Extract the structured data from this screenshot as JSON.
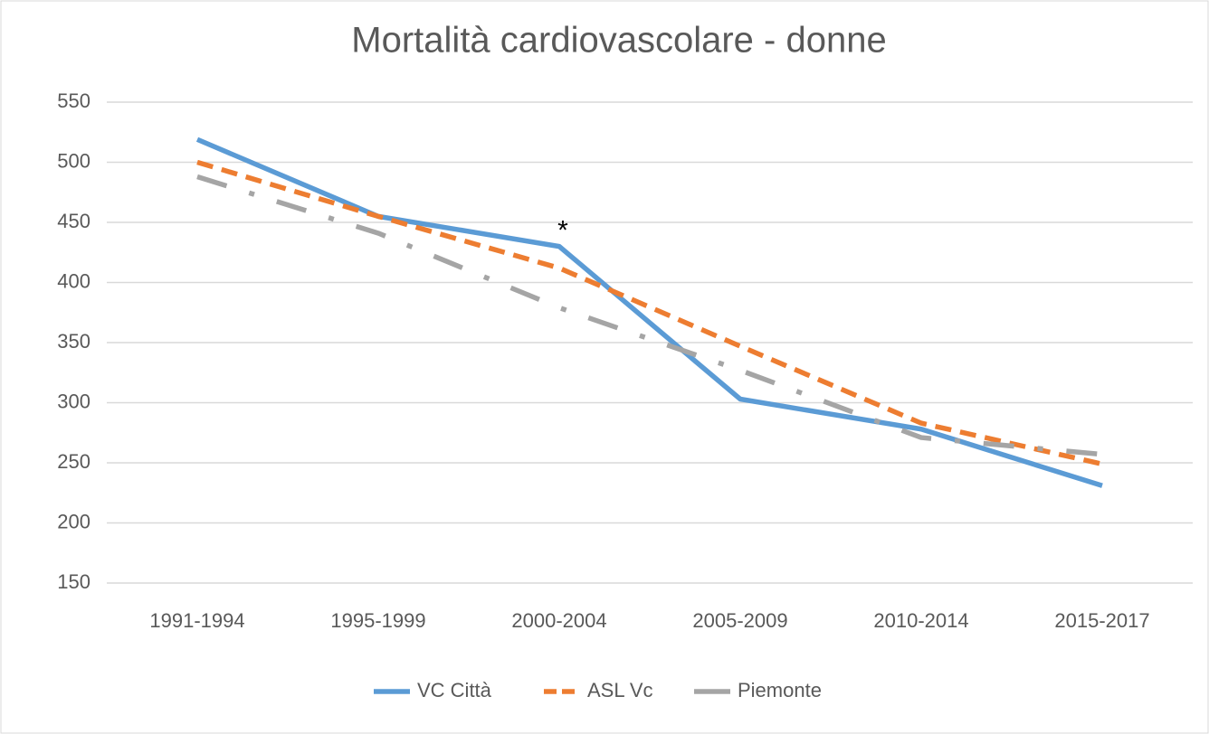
{
  "chart_data": {
    "type": "line",
    "title": "Mortalità cardiovascolare - donne",
    "categories": [
      "1991-1994",
      "1995-1999",
      "2000-2004",
      "2005-2009",
      "2010-2014",
      "2015-2017"
    ],
    "series": [
      {
        "name": "VC Città",
        "color": "#5b9bd5",
        "dash": "solid",
        "values": [
          519,
          455,
          430,
          303,
          278,
          231
        ]
      },
      {
        "name": "ASL Vc",
        "color": "#ed7d31",
        "dash": "dash",
        "values": [
          500,
          455,
          412,
          347,
          283,
          249
        ]
      },
      {
        "name": "Piemonte",
        "color": "#a5a5a5",
        "dash": "dashdot",
        "values": [
          488,
          441,
          379,
          327,
          271,
          257
        ]
      }
    ],
    "annotations": [
      {
        "text": "*",
        "category": 2,
        "series": 0
      }
    ],
    "ylim": [
      150,
      550
    ],
    "yticks": [
      150,
      200,
      250,
      300,
      350,
      400,
      450,
      500,
      550
    ],
    "grid": true,
    "legend": "bottom"
  }
}
